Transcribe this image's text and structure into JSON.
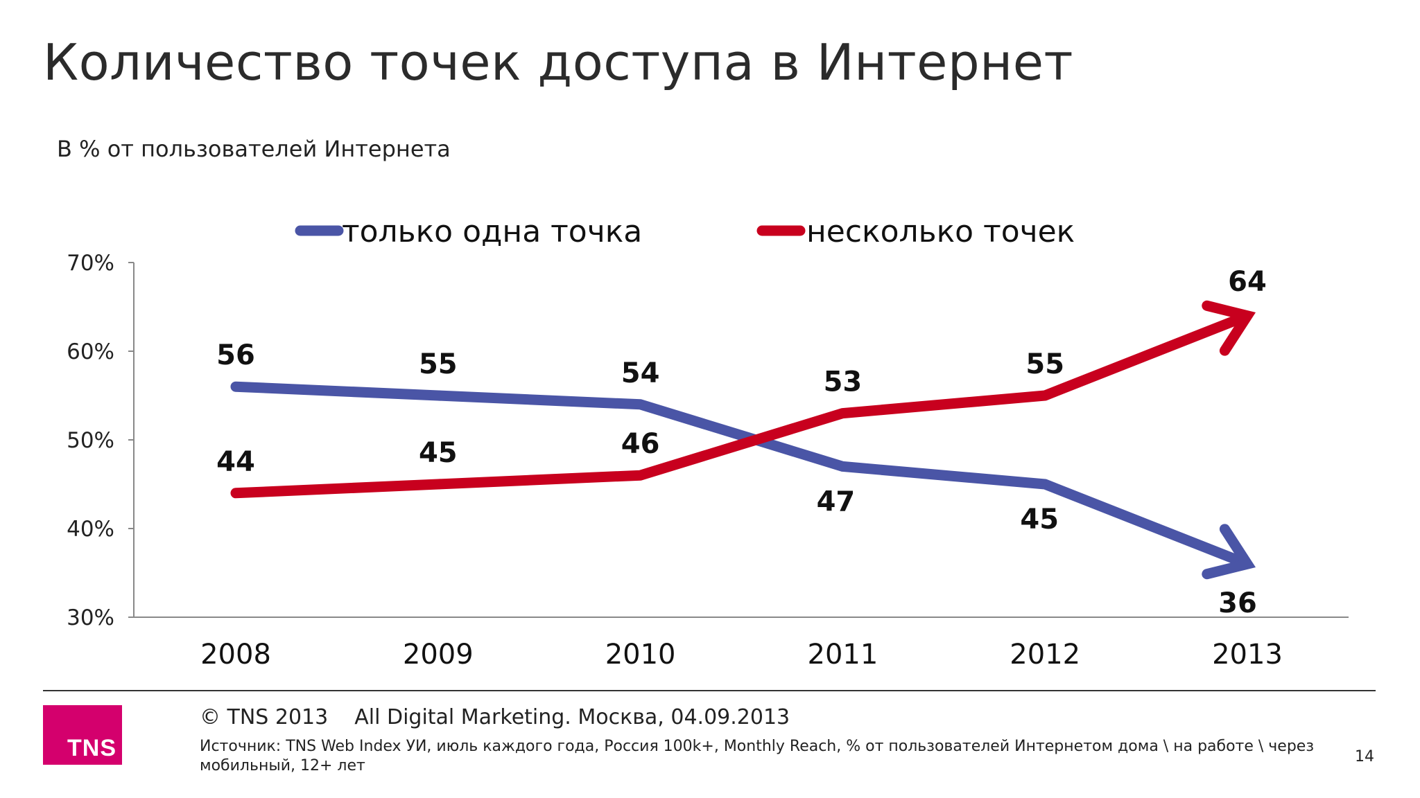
{
  "slide": {
    "title": "Количество точек доступа в Интернет",
    "subtitle": "В % от пользователей Интернета",
    "footer": {
      "copyright": "© TNS 2013",
      "event": "All Digital Marketing. Москва, 04.09.2013",
      "source": "Источник: TNS Web Index УИ, июль каждого года, Россия 100k+, Monthly Reach, % от пользователей Интернетом дома \\ на работе \\ через мобильный, 12+ лет",
      "page_number": "14",
      "logo_text": "TNS"
    },
    "colors": {
      "logo": "#d4006d"
    }
  },
  "chart_data": {
    "type": "line",
    "categories": [
      "2008",
      "2009",
      "2010",
      "2011",
      "2012",
      "2013"
    ],
    "series": [
      {
        "name": "только одна точка",
        "values": [
          56,
          55,
          54,
          47,
          45,
          36
        ],
        "color": "#4a55a6"
      },
      {
        "name": "несколько точек",
        "values": [
          44,
          45,
          46,
          53,
          55,
          64
        ],
        "color": "#c8001e"
      }
    ],
    "ylim": [
      30,
      70
    ],
    "yticks": [
      30,
      40,
      50,
      60,
      70
    ],
    "ytick_labels": [
      "30%",
      "40%",
      "50%",
      "60%",
      "70%"
    ],
    "legend": "top",
    "grid": false,
    "last_point_arrow": true
  }
}
